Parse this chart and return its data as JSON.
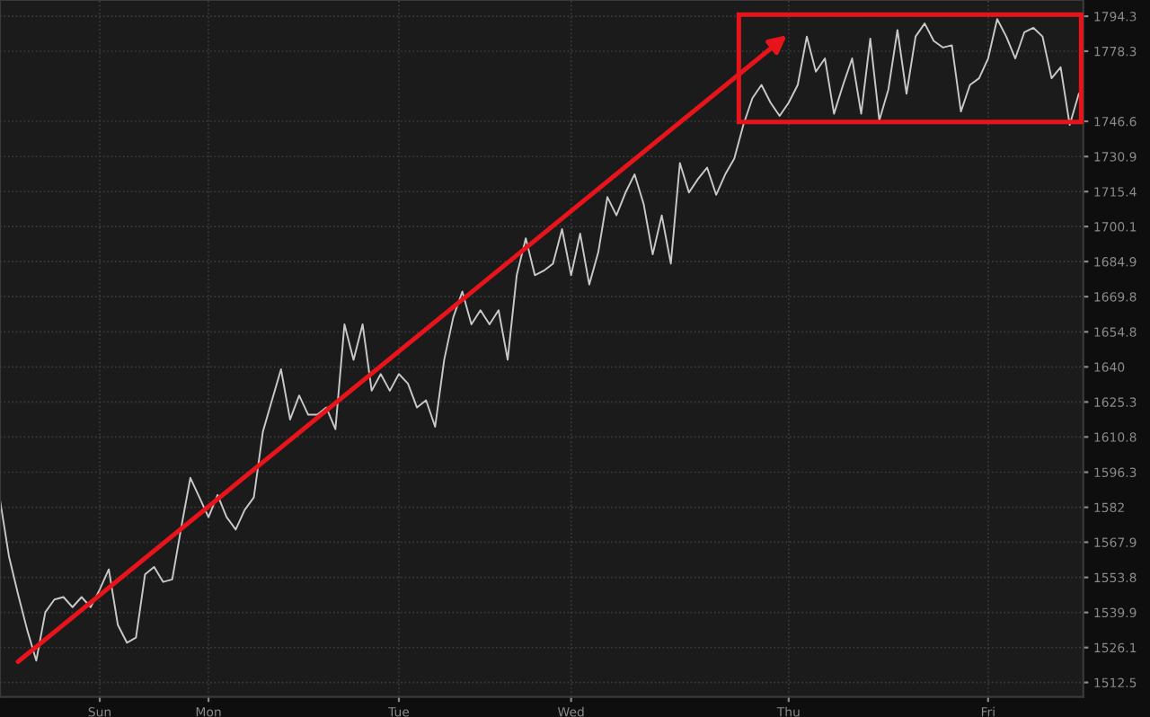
{
  "chart_data": {
    "type": "line",
    "categories": [
      null,
      null,
      null,
      null,
      null,
      null,
      null,
      null,
      null,
      null,
      null,
      "Sun",
      null,
      null,
      null,
      null,
      null,
      null,
      null,
      null,
      null,
      null,
      null,
      "Mon",
      null,
      null,
      null,
      null,
      null,
      null,
      null,
      null,
      null,
      null,
      null,
      null,
      null,
      null,
      null,
      null,
      null,
      null,
      null,
      null,
      "Tue",
      null,
      null,
      null,
      null,
      null,
      null,
      null,
      null,
      null,
      null,
      null,
      null,
      null,
      null,
      null,
      null,
      null,
      null,
      "Wed",
      null,
      null,
      null,
      null,
      null,
      null,
      null,
      null,
      null,
      null,
      null,
      null,
      null,
      null,
      null,
      null,
      null,
      null,
      null,
      null,
      null,
      null,
      null,
      "Thu",
      null,
      null,
      null,
      null,
      null,
      null,
      null,
      null,
      null,
      null,
      null,
      null,
      null,
      null,
      null,
      null,
      null,
      null,
      null,
      null,
      null,
      "Fri",
      null,
      null,
      null,
      null,
      null,
      null,
      null,
      null,
      null,
      null
    ],
    "series": [
      {
        "color": "#c8c8c8",
        "values": [
          1585,
          1562,
          1547,
          1533,
          1521,
          1540,
          1545,
          1546,
          1542,
          1546,
          1542,
          1549,
          1557,
          1535,
          1528,
          1530,
          1555,
          1558,
          1552,
          1553,
          1574,
          1594,
          1586,
          1578,
          1587,
          1578,
          1573,
          1581,
          1586,
          1613,
          1626,
          1639,
          1618,
          1628,
          1620,
          1620,
          1623,
          1614,
          1658,
          1643,
          1658,
          1630,
          1637,
          1630,
          1637,
          1633,
          1623,
          1626,
          1615,
          1643,
          1661,
          1672,
          1658,
          1664,
          1658,
          1664,
          1643,
          1679,
          1695,
          1679,
          1681,
          1684,
          1699,
          1679,
          1697,
          1675,
          1689,
          1713,
          1705,
          1715,
          1723,
          1710,
          1688,
          1705,
          1684,
          1728,
          1715,
          1721,
          1726,
          1714,
          1723,
          1730,
          1745,
          1757,
          1763,
          1755,
          1749,
          1755,
          1763,
          1785,
          1769,
          1775,
          1750,
          1763,
          1775,
          1750,
          1784,
          1747,
          1761,
          1788,
          1759,
          1785,
          1791,
          1783,
          1780,
          1781,
          1751,
          1763,
          1766,
          1775,
          1793,
          1785,
          1775,
          1787,
          1789,
          1785,
          1766,
          1771,
          1745,
          1759
        ]
      }
    ],
    "log": "y",
    "ylim": [
      1506.9,
      1801.8
    ],
    "yticks": [
      1512.5,
      1526.1,
      1539.9,
      1553.8,
      1567.9,
      1582,
      1596.3,
      1610.8,
      1625.3,
      1640,
      1654.8,
      1669.8,
      1684.9,
      1700.1,
      1715.4,
      1730.9,
      1746.6,
      1778.3,
      1794.3
    ],
    "grid": true
  }
}
